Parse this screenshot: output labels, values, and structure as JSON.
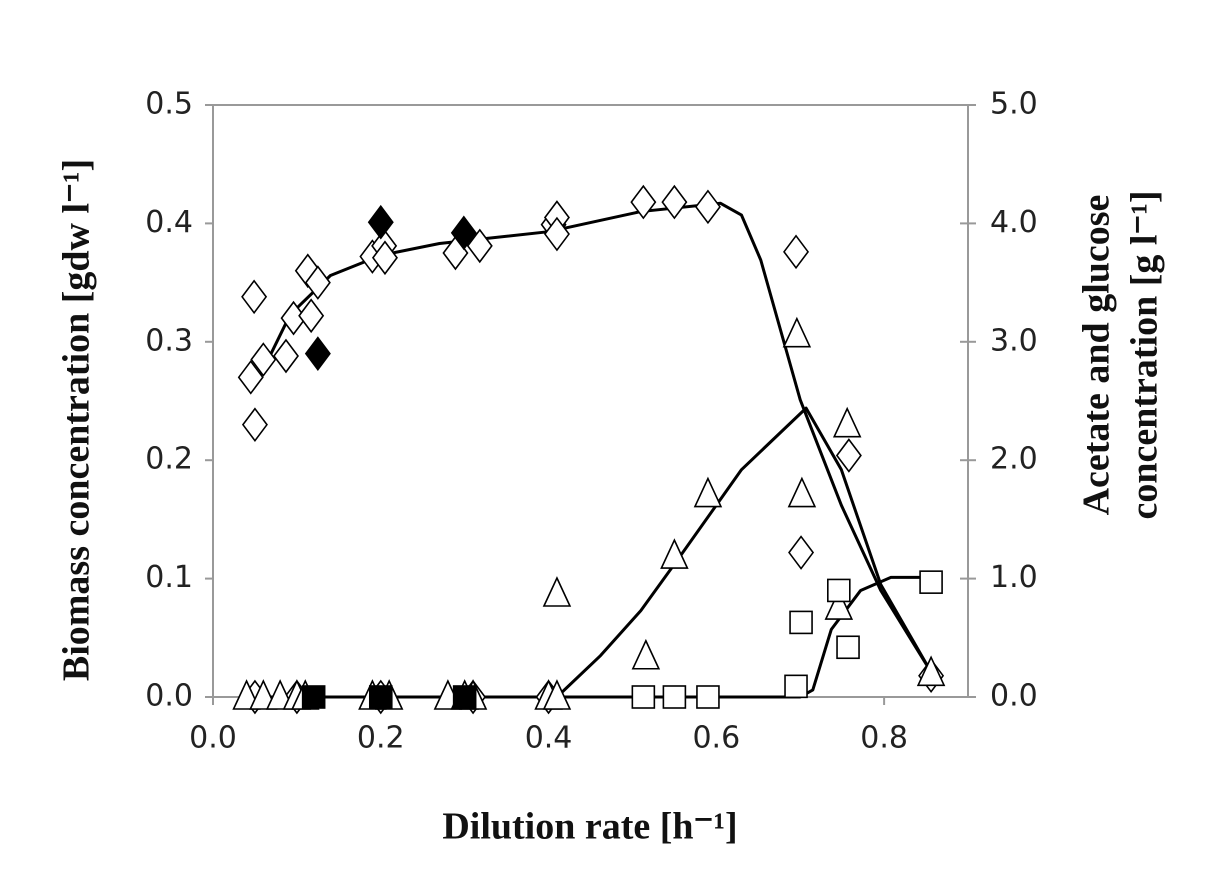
{
  "chart_data": {
    "type": "scatter",
    "xlabel": "Dilution rate [h⁻¹]",
    "ylabel": "Biomass concentration [gdw l⁻¹]",
    "y2label": [
      "Acetate and glucose",
      "concentration [g l⁻¹]"
    ],
    "xlim": [
      0,
      0.9
    ],
    "xticks": [
      {
        "value": 0,
        "label": "0.0"
      },
      0.2,
      0.4,
      0.6,
      0.8
    ],
    "ylim": [
      0,
      0.5
    ],
    "yticks": [
      {
        "value": 0,
        "label": "0.0"
      },
      0.1,
      0.2,
      0.3,
      0.4,
      0.5
    ],
    "y2lim": [
      0,
      5
    ],
    "y2ticks": [
      {
        "value": 0,
        "label": "0.0"
      },
      {
        "value": 1,
        "label": "1.0"
      },
      {
        "value": 2,
        "label": "2.0"
      },
      {
        "value": 3,
        "label": "3.0"
      },
      {
        "value": 4,
        "label": "4.0"
      },
      {
        "value": 5,
        "label": "5.0"
      }
    ],
    "series": [
      {
        "marker": "diamond",
        "filled": false,
        "color": "#000000",
        "x": [
          0.049,
          0.045,
          0.05,
          0.06,
          0.087,
          0.096,
          0.113,
          0.125,
          0.117,
          0.19,
          0.204,
          0.205,
          0.289,
          0.318,
          0.406,
          0.41,
          0.41,
          0.513,
          0.55,
          0.59,
          0.695,
          0.701,
          0.758,
          0.856,
          0.05,
          0.1,
          0.2,
          0.31,
          0.4
        ],
        "values": [
          0.338,
          0.27,
          0.23,
          0.285,
          0.288,
          0.32,
          0.36,
          0.35,
          0.322,
          0.372,
          0.381,
          0.371,
          0.375,
          0.381,
          0.399,
          0.405,
          0.391,
          0.418,
          0.418,
          0.414,
          0.376,
          0.122,
          0.204,
          0.018,
          0,
          0,
          0,
          0,
          0
        ]
      },
      {
        "marker": "diamond",
        "filled": true,
        "color": "#000000",
        "x": [
          0.125,
          0.2,
          0.299
        ],
        "values": [
          0.29,
          0.401,
          0.392
        ]
      },
      {
        "marker": "triangle",
        "filled": false,
        "color": "#000000",
        "axis": "y2",
        "x": [
          0.41,
          0.516,
          0.55,
          0.59,
          0.696,
          0.702,
          0.756,
          0.746,
          0.856,
          0.04,
          0.06,
          0.08,
          0.1,
          0.11,
          0.19,
          0.21,
          0.28,
          0.3,
          0.31,
          0.4,
          0.41
        ],
        "values": [
          0.87,
          0.34,
          1.19,
          1.71,
          3.06,
          1.71,
          2.3,
          0.76,
          0.2,
          0,
          0,
          0,
          0,
          0,
          0,
          0,
          0,
          0,
          0,
          0,
          0
        ]
      },
      {
        "marker": "square",
        "filled": false,
        "color": "#000000",
        "axis": "y2",
        "x": [
          0.513,
          0.55,
          0.59,
          0.695,
          0.701,
          0.746,
          0.757,
          0.856
        ],
        "values": [
          0,
          0,
          0,
          0.09,
          0.63,
          0.9,
          0.42,
          0.97
        ]
      },
      {
        "marker": "square",
        "filled": true,
        "color": "#000000",
        "axis": "y2",
        "x": [
          0.12,
          0.2,
          0.3
        ],
        "values": [
          0,
          0,
          0
        ]
      },
      {
        "style": "line",
        "color": "#000000",
        "x": [
          0.054,
          0.092,
          0.14,
          0.2,
          0.27,
          0.4,
          0.51,
          0.605,
          0.63,
          0.653,
          0.7,
          0.749,
          0.796,
          0.856
        ],
        "values": [
          0.268,
          0.323,
          0.356,
          0.373,
          0.383,
          0.393,
          0.41,
          0.417,
          0.407,
          0.369,
          0.251,
          0.162,
          0.09,
          0.021
        ]
      },
      {
        "style": "line",
        "color": "#000000",
        "axis": "y2",
        "x": [
          0.41,
          0.462,
          0.51,
          0.558,
          0.63,
          0.707,
          0.749,
          0.796,
          0.856
        ],
        "values": [
          0,
          0.35,
          0.73,
          1.2,
          1.92,
          2.44,
          1.92,
          0.95,
          0.21
        ]
      },
      {
        "style": "line",
        "color": "#000000",
        "axis": "y2",
        "x": [
          0.05,
          0.7,
          0.715,
          0.737,
          0.772,
          0.808,
          0.856
        ],
        "values": [
          0,
          0,
          0.06,
          0.57,
          0.9,
          1.01,
          1.01
        ]
      }
    ]
  }
}
